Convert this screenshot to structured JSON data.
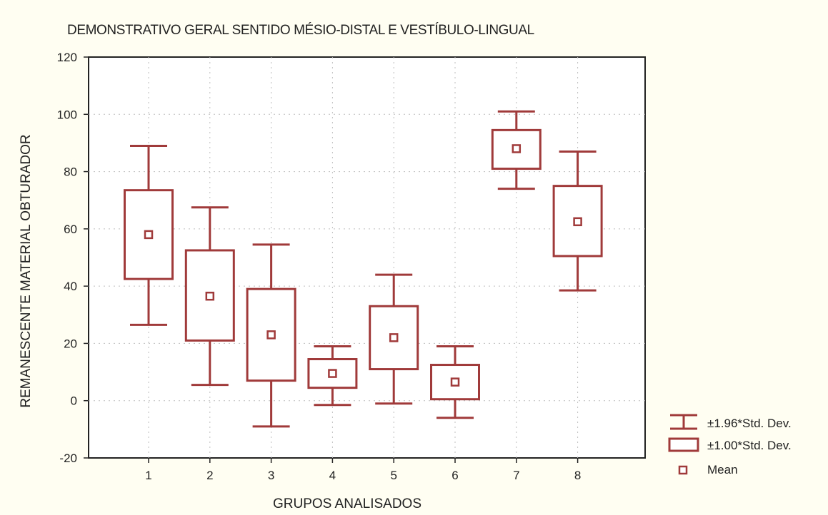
{
  "chart_data": {
    "type": "box",
    "title": "DEMONSTRATIVO GERAL SENTIDO MÉSIO-DISTAL E VESTÍBULO-LINGUAL",
    "xlabel": "GRUPOS ANALISADOS",
    "ylabel": "REMANESCENTE MATERIAL OBTURADOR",
    "ylim": [
      -20,
      120
    ],
    "yticks": [
      -20,
      0,
      20,
      40,
      60,
      80,
      100,
      120
    ],
    "categories": [
      "1",
      "2",
      "3",
      "4",
      "5",
      "6",
      "7",
      "8"
    ],
    "grid": true,
    "legend_position": "right",
    "color": "#a03a3a",
    "legend": {
      "whisker": "±1.96*Std. Dev.",
      "box": "±1.00*Std. Dev.",
      "mean": "Mean"
    },
    "groups": [
      {
        "label": "1",
        "mean": 58,
        "box_low": 42.5,
        "box_high": 73.5,
        "whisker_low": 26.5,
        "whisker_high": 89
      },
      {
        "label": "2",
        "mean": 36.5,
        "box_low": 21,
        "box_high": 52.5,
        "whisker_low": 5.5,
        "whisker_high": 67.5
      },
      {
        "label": "3",
        "mean": 23,
        "box_low": 7,
        "box_high": 39,
        "whisker_low": -9,
        "whisker_high": 54.5
      },
      {
        "label": "4",
        "mean": 9.5,
        "box_low": 4.5,
        "box_high": 14.5,
        "whisker_low": -1.5,
        "whisker_high": 19
      },
      {
        "label": "5",
        "mean": 22,
        "box_low": 11,
        "box_high": 33,
        "whisker_low": -1,
        "whisker_high": 44
      },
      {
        "label": "6",
        "mean": 6.5,
        "box_low": 0.5,
        "box_high": 12.5,
        "whisker_low": -6,
        "whisker_high": 19
      },
      {
        "label": "7",
        "mean": 88,
        "box_low": 81,
        "box_high": 94.5,
        "whisker_low": 74,
        "whisker_high": 101
      },
      {
        "label": "8",
        "mean": 62.5,
        "box_low": 50.5,
        "box_high": 75,
        "whisker_low": 38.5,
        "whisker_high": 87
      }
    ]
  }
}
